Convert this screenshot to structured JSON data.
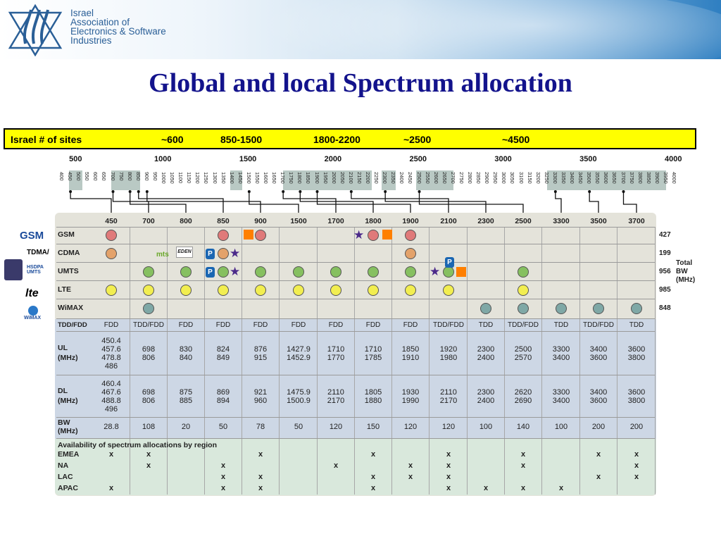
{
  "header": {
    "org_line1": "Israel",
    "org_line2": "Association of",
    "org_line3": "Electronics & Software",
    "org_line4": "Industries",
    "logo_icon": "star-of-david-hands-icon"
  },
  "title": "Global and local Spectrum allocation",
  "sites_bar": {
    "label": "Israel # of sites",
    "v1": "~600",
    "v2": "850-1500",
    "v3": "1800-2200",
    "v4": "~2500",
    "v5": "~4500"
  },
  "scale_major": [
    "500",
    "1000",
    "1500",
    "2000",
    "2500",
    "3000",
    "3500",
    "4000"
  ],
  "scale_minor": [
    "400",
    "450",
    "500",
    "550",
    "600",
    "650",
    "700",
    "750",
    "800",
    "850",
    "900",
    "950",
    "1000",
    "1050",
    "1100",
    "1150",
    "1200",
    "1250",
    "1300",
    "1350",
    "1400",
    "1450",
    "1500",
    "1550",
    "1600",
    "1650",
    "1700",
    "1750",
    "1800",
    "1850",
    "1900",
    "1950",
    "2000",
    "2050",
    "2100",
    "2150",
    "2200",
    "2250",
    "2300",
    "2350",
    "2400",
    "2450",
    "2500",
    "2550",
    "2600",
    "2650",
    "2700",
    "2750",
    "2800",
    "2850",
    "2900",
    "2950",
    "3000",
    "3050",
    "3100",
    "3150",
    "3200",
    "3250",
    "3300",
    "3350",
    "3400",
    "3450",
    "3500",
    "3550",
    "3600",
    "3650",
    "3700",
    "3750",
    "3800",
    "3850",
    "3900",
    "3950",
    "4000"
  ],
  "bands": [
    "450",
    "700",
    "800",
    "850",
    "900",
    "1500",
    "1700",
    "1800",
    "1900",
    "2100",
    "2300",
    "2500",
    "3300",
    "3500",
    "3700"
  ],
  "techs": [
    {
      "name": "GSM",
      "color": "#e07a7a",
      "cols": [
        0,
        3,
        4,
        7,
        8
      ],
      "count": "427",
      "logo": "GSM"
    },
    {
      "name": "CDMA",
      "color": "#e3a26a",
      "cols": [
        0,
        3,
        8
      ],
      "count": "199",
      "logo": "TDMA/"
    },
    {
      "name": "UMTS",
      "color": "#86c060",
      "cols": [
        1,
        2,
        3,
        4,
        5,
        6,
        7,
        8,
        9,
        11
      ],
      "count": "956",
      "logo": "HSDPA UMTS"
    },
    {
      "name": "LTE",
      "color": "#f2ee50",
      "cols": [
        0,
        1,
        2,
        3,
        4,
        5,
        6,
        7,
        8,
        9,
        11
      ],
      "count": "985",
      "logo": "lte"
    },
    {
      "name": "WiMAX",
      "color": "#7fa8a6",
      "cols": [
        1,
        10,
        11,
        12,
        13,
        14
      ],
      "count": "848",
      "logo": "WiMAX"
    }
  ],
  "total_label": [
    "Total",
    "BW",
    "(MHz)"
  ],
  "duplex": {
    "label": "TDD/FDD",
    "values": [
      "FDD",
      "TDD/FDD",
      "FDD",
      "FDD",
      "FDD",
      "FDD",
      "FDD",
      "FDD",
      "FDD",
      "TDD/FDD",
      "TDD",
      "TDD/FDD",
      "TDD",
      "TDD/FDD",
      "TDD"
    ]
  },
  "ul": {
    "label1": "UL",
    "label2": "(MHz)",
    "values": [
      [
        "450.4",
        "457.6",
        "478.8",
        "486"
      ],
      [
        "698",
        "806"
      ],
      [
        "830",
        "840"
      ],
      [
        "824",
        "849"
      ],
      [
        "876",
        "915"
      ],
      [
        "1427.9",
        "1452.9"
      ],
      [
        "1710",
        "1770"
      ],
      [
        "1710",
        "1785"
      ],
      [
        "1850",
        "1910"
      ],
      [
        "1920",
        "1980"
      ],
      [
        "2300",
        "2400"
      ],
      [
        "2500",
        "2570"
      ],
      [
        "3300",
        "3400"
      ],
      [
        "3400",
        "3600"
      ],
      [
        "3600",
        "3800"
      ]
    ]
  },
  "dl": {
    "label1": "DL",
    "label2": "(MHz)",
    "values": [
      [
        "460.4",
        "467.6",
        "488.8",
        "496"
      ],
      [
        "698",
        "806"
      ],
      [
        "875",
        "885"
      ],
      [
        "869",
        "894"
      ],
      [
        "921",
        "960"
      ],
      [
        "1475.9",
        "1500.9"
      ],
      [
        "2110",
        "2170"
      ],
      [
        "1805",
        "1880"
      ],
      [
        "1930",
        "1990"
      ],
      [
        "2110",
        "2170"
      ],
      [
        "2300",
        "2400"
      ],
      [
        "2620",
        "2690"
      ],
      [
        "3300",
        "3400"
      ],
      [
        "3400",
        "3600"
      ],
      [
        "3600",
        "3800"
      ]
    ]
  },
  "bw": {
    "label1": "BW",
    "label2": "(MHz)",
    "values": [
      "28.8",
      "108",
      "20",
      "50",
      "78",
      "50",
      "120",
      "150",
      "120",
      "120",
      "100",
      "140",
      "100",
      "200",
      "200"
    ]
  },
  "availability": {
    "heading": "Availability of spectrum allocations by region",
    "regions": [
      {
        "name": "EMEA",
        "cols": [
          0,
          1,
          4,
          7,
          9,
          11,
          13,
          14
        ]
      },
      {
        "name": "NA",
        "cols": [
          1,
          3,
          6,
          8,
          9,
          11,
          14
        ]
      },
      {
        "name": "LAC",
        "cols": [
          3,
          4,
          7,
          8,
          9,
          13,
          14
        ]
      },
      {
        "name": "APAC",
        "cols": [
          0,
          3,
          4,
          7,
          9,
          10,
          11,
          12
        ]
      }
    ],
    "mark": "x"
  },
  "side_extras": {
    "mts": "mts",
    "eden": "EDEN"
  },
  "colors": {
    "title": "#13138c",
    "sites_bg": "#ffff00",
    "board": "#e4e3da",
    "band_blue": "#cdd7e5",
    "band_green": "#d9e8dc"
  }
}
